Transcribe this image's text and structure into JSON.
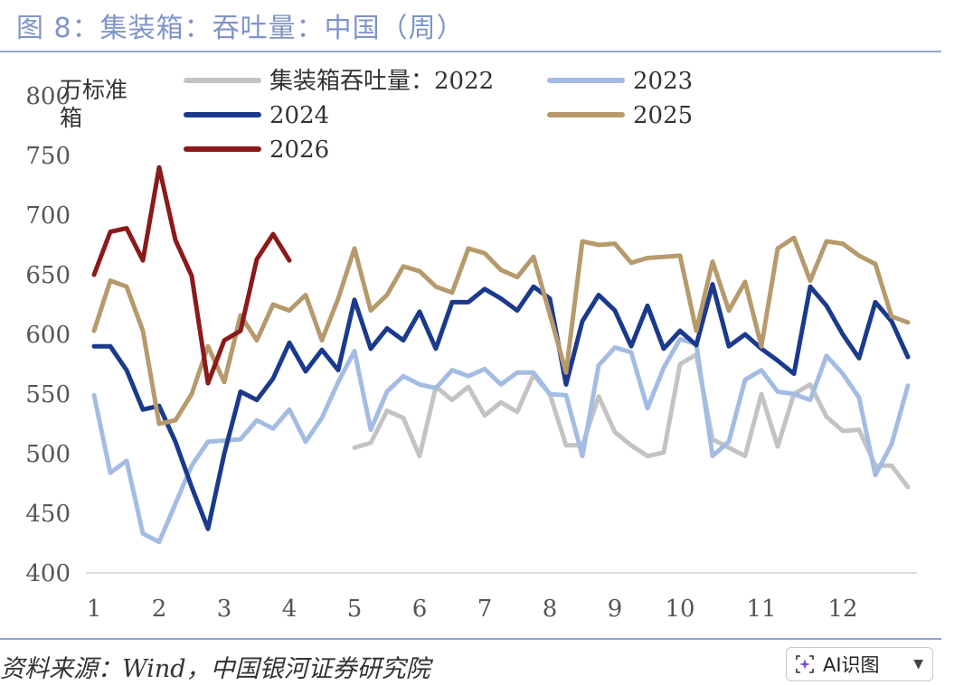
{
  "header": {
    "title": "图 8：集装箱：吞吐量：中国（周）"
  },
  "footer": {
    "source": "资料来源：Wind，中国银河证券研究院"
  },
  "ai_button": {
    "label": "AI识图"
  },
  "colors": {
    "accent": "#8fa3cf",
    "title": "#7f95c8"
  },
  "chart_data": {
    "type": "line",
    "title": "集装箱：吞吐量：中国（周）",
    "ylabel": "万标准箱",
    "ylabel_lines": [
      "万标准",
      "箱"
    ],
    "ylim": [
      400,
      800
    ],
    "yticks": [
      400,
      450,
      500,
      550,
      600,
      650,
      700,
      750,
      800
    ],
    "xlim": [
      1,
      53
    ],
    "xticks": [
      {
        "label": "1",
        "week": 1
      },
      {
        "label": "2",
        "week": 5
      },
      {
        "label": "3",
        "week": 9
      },
      {
        "label": "4",
        "week": 13
      },
      {
        "label": "5",
        "week": 17
      },
      {
        "label": "6",
        "week": 21
      },
      {
        "label": "7",
        "week": 25
      },
      {
        "label": "8",
        "week": 29
      },
      {
        "label": "9",
        "week": 33
      },
      {
        "label": "10",
        "week": 37
      },
      {
        "label": "11",
        "week": 42
      },
      {
        "label": "12",
        "week": 47
      }
    ],
    "legend": "top",
    "grid": false,
    "series": [
      {
        "name": "集装箱吞吐量：2022",
        "color": "#c3c3c3",
        "start_week": 17,
        "values": [
          505,
          509,
          536,
          530,
          498,
          556,
          545,
          556,
          532,
          543,
          535,
          566,
          550,
          507,
          507,
          548,
          518,
          507,
          498,
          501,
          575,
          583,
          512,
          505,
          498,
          550,
          506,
          550,
          558,
          531,
          519,
          520,
          490,
          490,
          472
        ]
      },
      {
        "name": "2023",
        "color": "#a4bce3",
        "start_week": 1,
        "values": [
          549,
          484,
          494,
          433,
          426,
          458,
          490,
          510,
          511,
          512,
          528,
          521,
          537,
          510,
          530,
          560,
          586,
          520,
          552,
          565,
          558,
          555,
          570,
          565,
          571,
          558,
          568,
          568,
          550,
          549,
          498,
          574,
          589,
          585,
          538,
          572,
          596,
          592,
          498,
          510,
          562,
          570,
          552,
          550,
          545,
          582,
          567,
          547,
          482,
          508,
          557
        ]
      },
      {
        "name": "2024",
        "color": "#1b3a8c",
        "start_week": 1,
        "values": [
          590,
          590,
          570,
          537,
          540,
          510,
          472,
          437,
          500,
          552,
          545,
          563,
          593,
          569,
          587,
          570,
          629,
          588,
          605,
          595,
          619,
          588,
          627,
          627,
          638,
          630,
          620,
          640,
          630,
          558,
          611,
          633,
          620,
          590,
          624,
          588,
          603,
          591,
          642,
          590,
          600,
          588,
          578,
          567,
          640,
          624,
          600,
          580,
          627,
          611,
          581
        ]
      },
      {
        "name": "2025",
        "color": "#b79a6c",
        "start_week": 1,
        "values": [
          603,
          645,
          640,
          603,
          525,
          528,
          550,
          590,
          560,
          616,
          595,
          625,
          620,
          633,
          595,
          630,
          672,
          620,
          633,
          657,
          653,
          640,
          635,
          672,
          668,
          654,
          648,
          665,
          617,
          568,
          678,
          675,
          676,
          660,
          664,
          665,
          666,
          603,
          661,
          620,
          644,
          590,
          672,
          681,
          645,
          678,
          676,
          666,
          659,
          615,
          610
        ]
      },
      {
        "name": "2026",
        "color": "#8b1a1a",
        "start_week": 1,
        "values": [
          650,
          686,
          689,
          662,
          740,
          679,
          649,
          559,
          595,
          603,
          663,
          684,
          662
        ]
      }
    ]
  }
}
